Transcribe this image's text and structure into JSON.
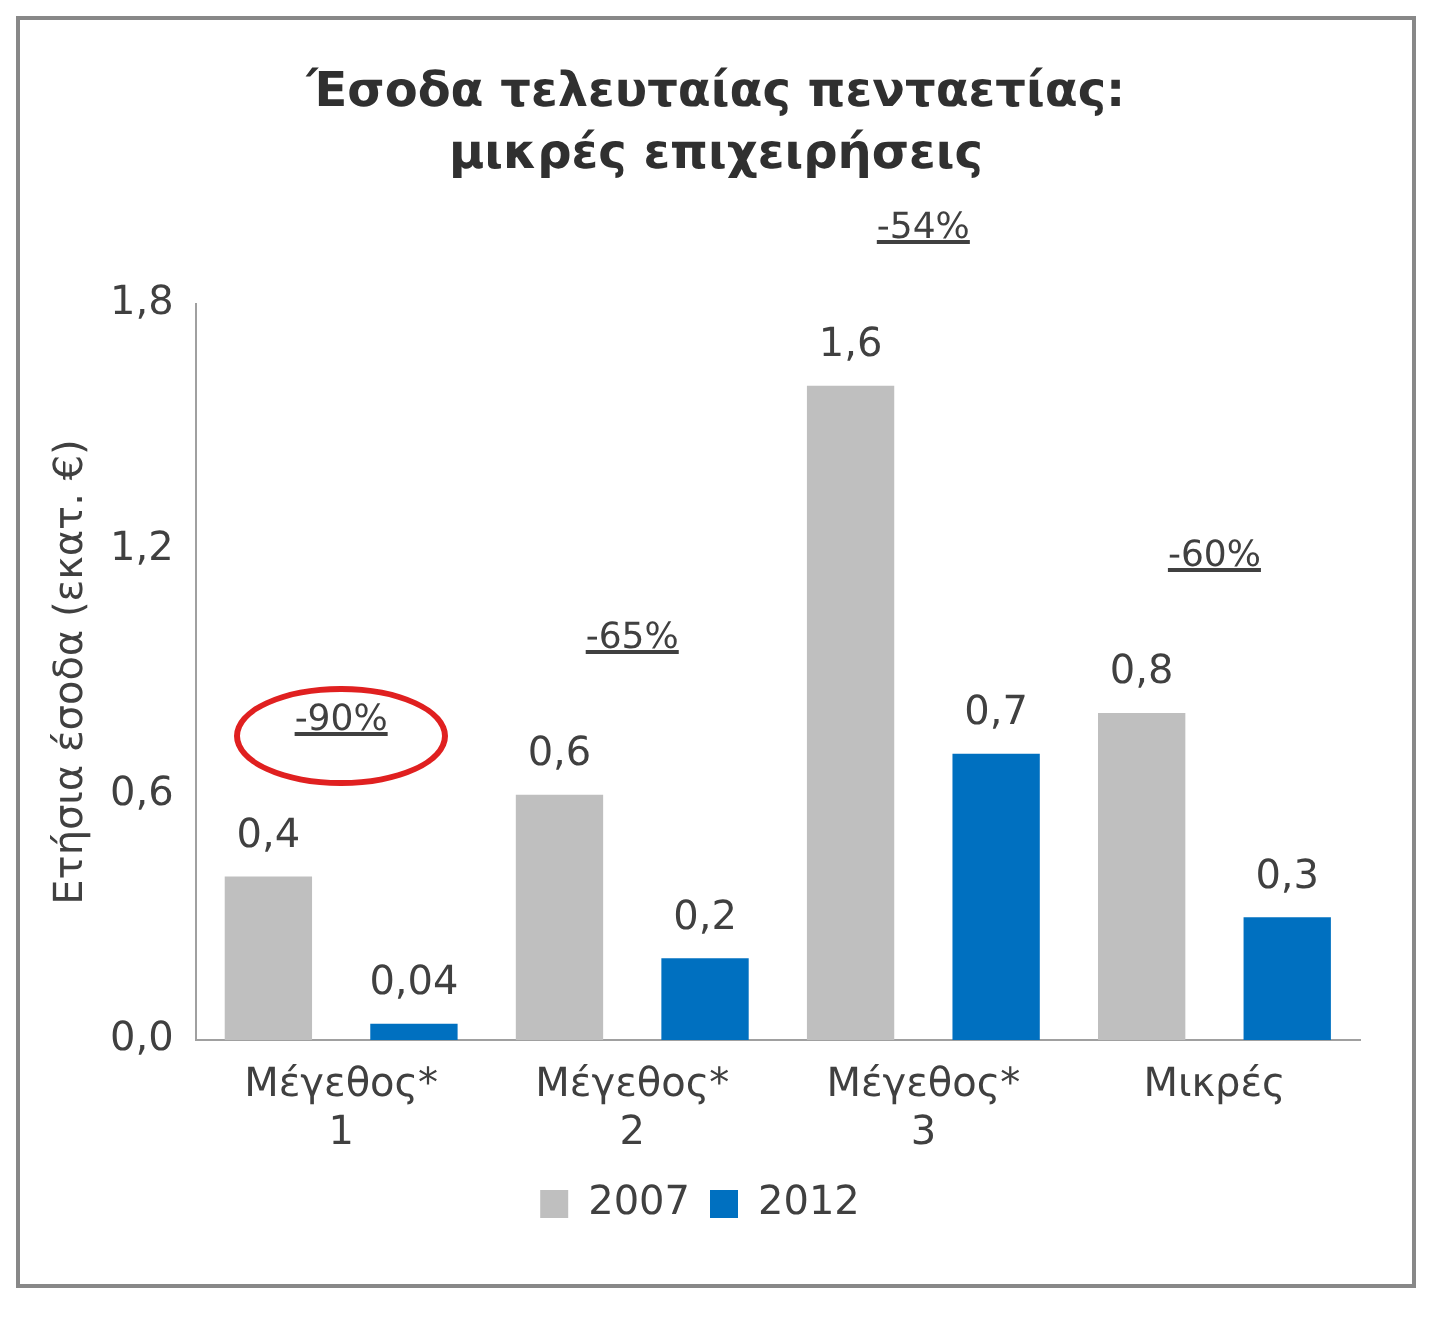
{
  "chart_data": {
    "type": "bar",
    "title": "Έσοδα τελευταίας πενταετίας: μικρές επιχειρήσεις",
    "ylabel": "Ετήσια έσοδα (εκατ. €)",
    "categories": [
      "Μέγεθος* 1",
      "Μέγεθος* 2",
      "Μέγεθος* 3",
      "Μικρές"
    ],
    "series": [
      {
        "name": "2007",
        "color": "#bfbfbf",
        "values": [
          0.4,
          0.6,
          1.6,
          0.8
        ],
        "value_labels": [
          "0,4",
          "0,6",
          "1,6",
          "0,8"
        ]
      },
      {
        "name": "2012",
        "color": "#0070c0",
        "values": [
          0.04,
          0.2,
          0.7,
          0.3
        ],
        "value_labels": [
          "0,04",
          "0,2",
          "0,7",
          "0,3"
        ]
      }
    ],
    "ylim": [
      0,
      1.8
    ],
    "yticks": [
      {
        "value": 0,
        "label": "0,0"
      },
      {
        "value": 0.6,
        "label": "0,6"
      },
      {
        "value": 1.2,
        "label": "1,2"
      },
      {
        "value": 1.8,
        "label": "1,8"
      }
    ],
    "grid": false,
    "legend": "bottom",
    "annotations": [
      "-90%",
      "-65%",
      "-54%",
      "-60%"
    ]
  }
}
